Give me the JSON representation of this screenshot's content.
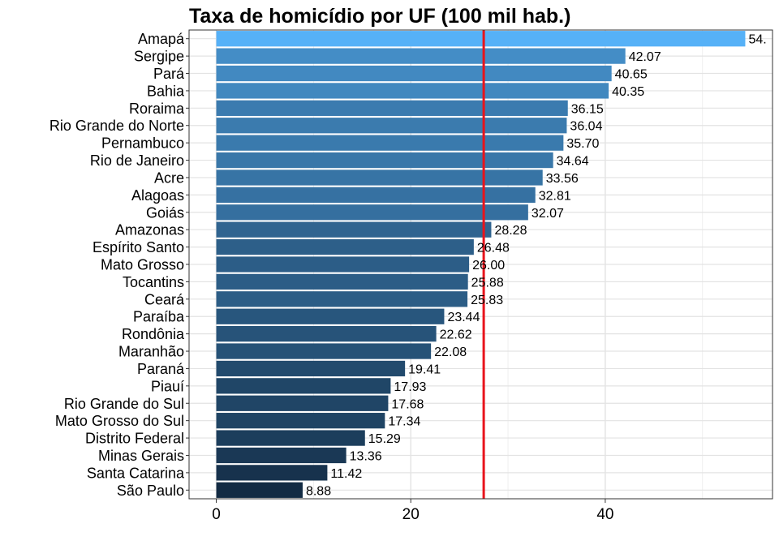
{
  "chart_data": {
    "type": "bar",
    "orientation": "horizontal",
    "title": "Taxa de homicídio por UF (100 mil hab.)",
    "xlabel": "",
    "ylabel": "",
    "categories": [
      "Amapá",
      "Sergipe",
      "Pará",
      "Bahia",
      "Roraima",
      "Rio Grande do Norte",
      "Pernambuco",
      "Rio de Janeiro",
      "Acre",
      "Alagoas",
      "Goiás",
      "Amazonas",
      "Espírito Santo",
      "Mato Grosso",
      "Tocantins",
      "Ceará",
      "Paraíba",
      "Rondônia",
      "Maranhão",
      "Paraná",
      "Piauí",
      "Rio Grande do Sul",
      "Mato Grosso do Sul",
      "Distrito Federal",
      "Minas Gerais",
      "Santa Catarina",
      "São Paulo"
    ],
    "values": [
      54.4,
      42.07,
      40.65,
      40.35,
      36.15,
      36.04,
      35.7,
      34.64,
      33.56,
      32.81,
      32.07,
      28.28,
      26.48,
      26.0,
      25.88,
      25.83,
      23.44,
      22.62,
      22.08,
      19.41,
      17.93,
      17.68,
      17.34,
      15.29,
      13.36,
      11.42,
      8.88
    ],
    "data_labels": [
      "54.",
      "42.07",
      "40.65",
      "40.35",
      "36.15",
      "36.04",
      "35.70",
      "34.64",
      "33.56",
      "32.81",
      "32.07",
      "28.28",
      "26.48",
      "26.00",
      "25.88",
      "25.83",
      "23.44",
      "22.62",
      "22.08",
      "19.41",
      "17.93",
      "17.68",
      "17.34",
      "15.29",
      "13.36",
      "11.42",
      "8.88"
    ],
    "xlim": [
      -2.8,
      57.2
    ],
    "xticks": [
      0,
      20,
      40
    ],
    "xtick_labels": [
      "0",
      "20",
      "40"
    ],
    "reference_line": {
      "x": 27.5,
      "color": "#e8141c"
    },
    "color_scale": {
      "low": "#132b43",
      "high": "#56b1f7"
    },
    "grid": true,
    "legend": "none"
  }
}
